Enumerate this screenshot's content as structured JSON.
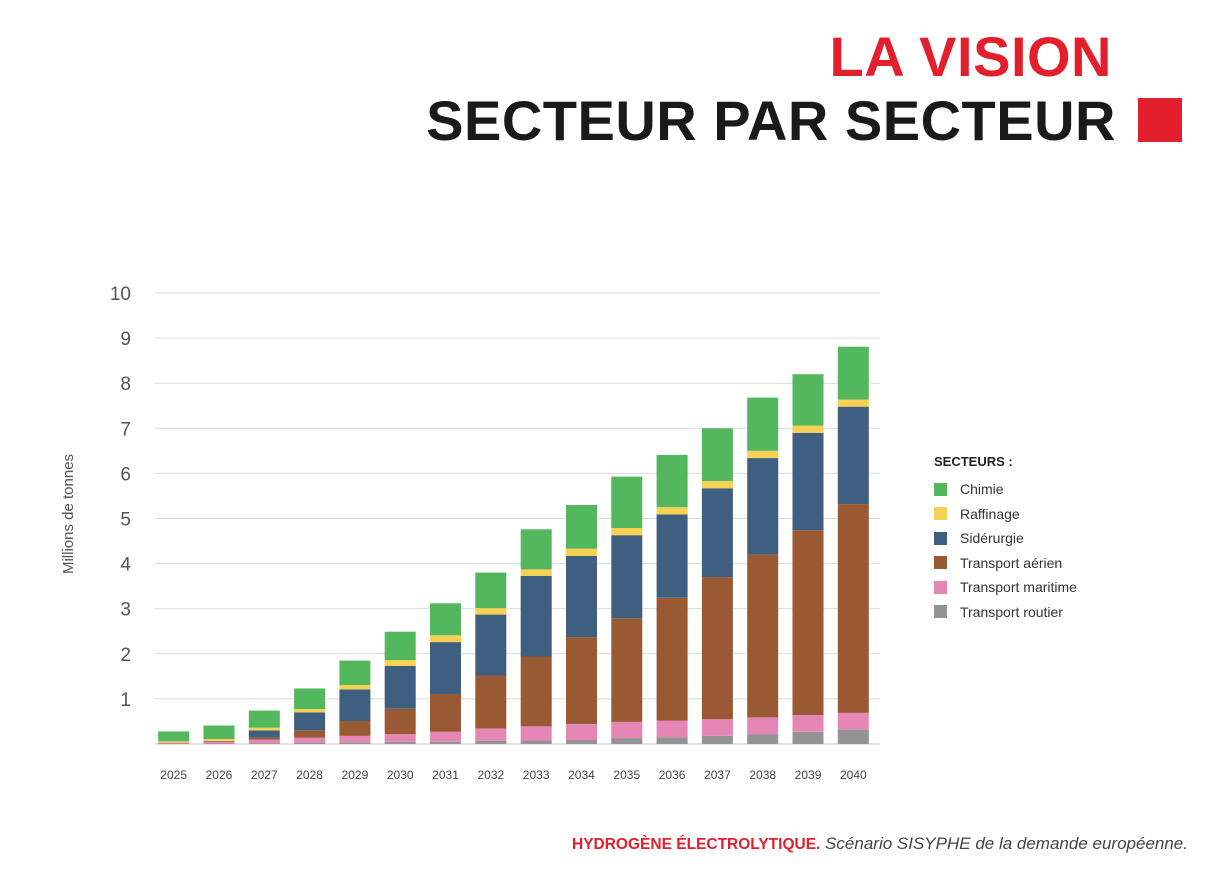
{
  "header": {
    "title_line1": "LA VISION",
    "title_line2": "SECTEUR PAR SECTEUR"
  },
  "legend": {
    "title": "SECTEURS :"
  },
  "footer": {
    "bold": "HYDROGÈNE ÉLECTROLYTIQUE.",
    "text": "Scénario SISYPHE de la demande européenne."
  },
  "colors": {
    "accent": "#e31e2d",
    "Chimie": "#52b75d",
    "Raffinage": "#f7d154",
    "Sidérurgie": "#3f5f80",
    "Transport aérien": "#995a33",
    "Transport maritime": "#e686b6",
    "Transport routier": "#939393"
  },
  "chart_data": {
    "type": "bar",
    "stacked": true,
    "title": "",
    "xlabel": "",
    "ylabel": "Millions de tonnes",
    "ylim": [
      0,
      10
    ],
    "yticks": [
      1,
      2,
      3,
      4,
      5,
      6,
      7,
      8,
      9,
      10
    ],
    "grid": true,
    "legend_position": "right",
    "categories": [
      "2025",
      "2026",
      "2027",
      "2028",
      "2029",
      "2030",
      "2031",
      "2032",
      "2033",
      "2034",
      "2035",
      "2036",
      "2037",
      "2038",
      "2039",
      "2040"
    ],
    "series": [
      {
        "name": "Transport routier",
        "values": [
          0.01,
          0.01,
          0.02,
          0.03,
          0.04,
          0.05,
          0.05,
          0.07,
          0.08,
          0.09,
          0.13,
          0.15,
          0.18,
          0.22,
          0.27,
          0.32
        ]
      },
      {
        "name": "Transport maritime",
        "values": [
          0.02,
          0.04,
          0.08,
          0.11,
          0.14,
          0.17,
          0.22,
          0.27,
          0.31,
          0.35,
          0.36,
          0.37,
          0.37,
          0.37,
          0.37,
          0.37
        ]
      },
      {
        "name": "Transport aérien",
        "values": [
          0.0,
          0.02,
          0.04,
          0.16,
          0.33,
          0.56,
          0.84,
          1.18,
          1.55,
          1.93,
          2.3,
          2.72,
          3.15,
          3.61,
          4.1,
          4.63
        ]
      },
      {
        "name": "Sidérurgie",
        "values": [
          0.0,
          0.0,
          0.16,
          0.4,
          0.7,
          0.95,
          1.15,
          1.35,
          1.79,
          1.8,
          1.84,
          1.85,
          1.97,
          2.14,
          2.16,
          2.16
        ]
      },
      {
        "name": "Raffinage",
        "values": [
          0.03,
          0.04,
          0.06,
          0.07,
          0.1,
          0.13,
          0.15,
          0.14,
          0.14,
          0.16,
          0.16,
          0.16,
          0.16,
          0.16,
          0.16,
          0.16
        ]
      },
      {
        "name": "Chimie",
        "values": [
          0.22,
          0.3,
          0.38,
          0.46,
          0.54,
          0.63,
          0.71,
          0.79,
          0.89,
          0.97,
          1.14,
          1.16,
          1.17,
          1.18,
          1.14,
          1.17
        ]
      }
    ],
    "legend_order": [
      "Chimie",
      "Raffinage",
      "Sidérurgie",
      "Transport aérien",
      "Transport maritime",
      "Transport routier"
    ]
  }
}
